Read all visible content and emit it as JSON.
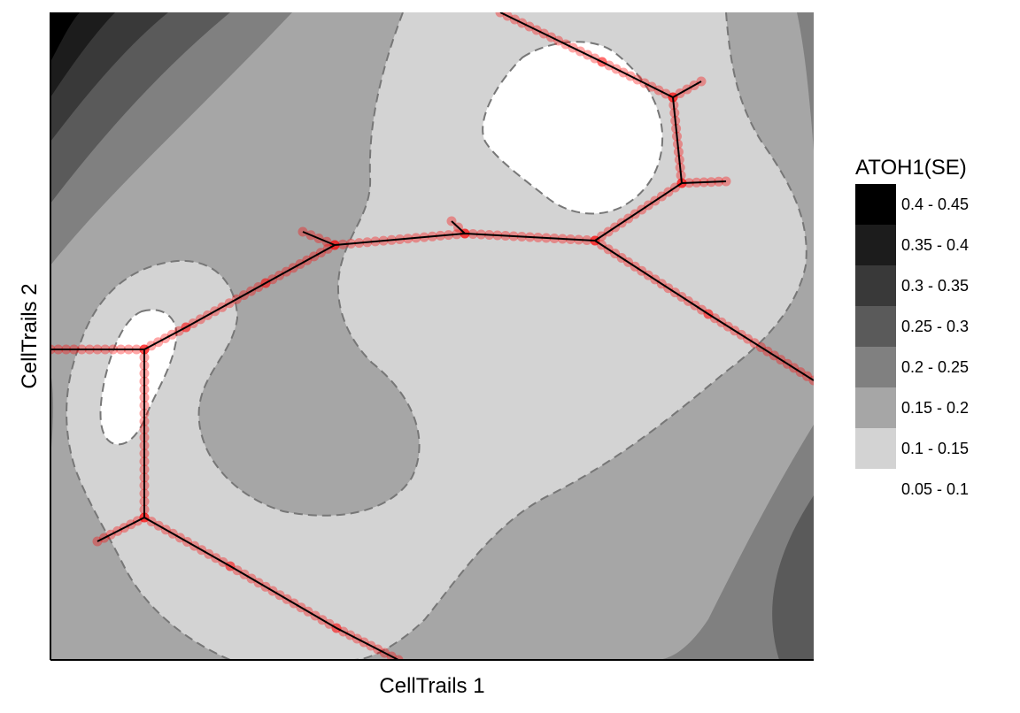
{
  "chart_data": {
    "type": "contour",
    "title": "",
    "xlabel": "CellTrails 1",
    "ylabel": "CellTrails 2",
    "legend": {
      "title": "ATOH1(SE)",
      "position": "right",
      "entries": [
        {
          "label": "0.4 - 0.45",
          "color": "#000000"
        },
        {
          "label": "0.35 - 0.4",
          "color": "#1c1c1c"
        },
        {
          "label": "0.3 - 0.35",
          "color": "#393939"
        },
        {
          "label": "0.25 - 0.3",
          "color": "#5a5a5a"
        },
        {
          "label": "0.2 - 0.25",
          "color": "#808080"
        },
        {
          "label": "0.15 - 0.2",
          "color": "#a6a6a6"
        },
        {
          "label": "0.1 - 0.15",
          "color": "#d3d3d3"
        },
        {
          "label": "0.05 - 0.1",
          "color": "#ffffff"
        }
      ]
    },
    "trajectory_color": "#ff0000",
    "trajectory_line_color": "#000000",
    "grid": false
  }
}
